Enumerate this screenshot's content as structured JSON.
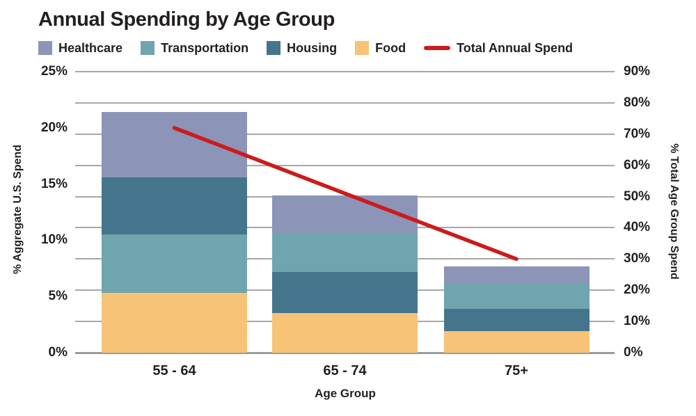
{
  "title": "Annual Spending by Age Group",
  "legend": [
    {
      "label": "Healthcare",
      "type": "swatch",
      "color": "#8c94b8"
    },
    {
      "label": "Transportation",
      "type": "swatch",
      "color": "#6fa5ae"
    },
    {
      "label": "Housing",
      "type": "swatch",
      "color": "#44758c"
    },
    {
      "label": "Food",
      "type": "swatch",
      "color": "#f6c377"
    },
    {
      "label": "Total Annual Spend",
      "type": "line",
      "color": "#cc1b1b"
    }
  ],
  "colors": {
    "series": {
      "Healthcare": "#8c94b8",
      "Transportation": "#6fa5ae",
      "Housing": "#44758c",
      "Food": "#f6c377"
    },
    "line": "#cc1b1b",
    "grid": "#a7a7a7",
    "text": "#231f20",
    "background": "#ffffff"
  },
  "chart_data": {
    "type": "bar",
    "subtype": "stacked-bars-with-line-overlay",
    "categories": [
      "55 - 64",
      "65 - 74",
      "75+"
    ],
    "series": [
      {
        "name": "Healthcare",
        "axis": "left",
        "values": [
          5.8,
          3.4,
          1.6
        ]
      },
      {
        "name": "Transportation",
        "axis": "left",
        "values": [
          5.2,
          3.4,
          2.2
        ]
      },
      {
        "name": "Housing",
        "axis": "left",
        "values": [
          5.1,
          3.7,
          2.0
        ]
      },
      {
        "name": "Food",
        "axis": "left",
        "values": [
          5.3,
          3.5,
          1.9
        ]
      }
    ],
    "stack_totals": [
      21.4,
      14.0,
      7.7
    ],
    "stack_orders_bottom_to_top": [
      [
        "Food",
        "Transportation",
        "Housing",
        "Healthcare"
      ],
      [
        "Food",
        "Housing",
        "Transportation",
        "Healthcare"
      ],
      [
        "Food",
        "Housing",
        "Transportation",
        "Healthcare"
      ]
    ],
    "line_series": {
      "name": "Total Annual Spend",
      "axis": "right",
      "values": [
        72,
        51,
        30
      ]
    },
    "left_axis": {
      "title": "% Aggregate U.S. Spend",
      "min": 0,
      "max": 25,
      "ticks": [
        "0%",
        "5%",
        "10%",
        "15%",
        "20%",
        "25%"
      ]
    },
    "right_axis": {
      "title": "% Total Age Group Spend",
      "min": 0,
      "max": 90,
      "ticks": [
        "0%",
        "10%",
        "20%",
        "30%",
        "40%",
        "50%",
        "60%",
        "70%",
        "80%",
        "90%"
      ]
    },
    "x_axis": {
      "title": "Age Group"
    },
    "grid": "horizontal gridlines at right-axis 10% intervals",
    "legend_position": "top"
  }
}
